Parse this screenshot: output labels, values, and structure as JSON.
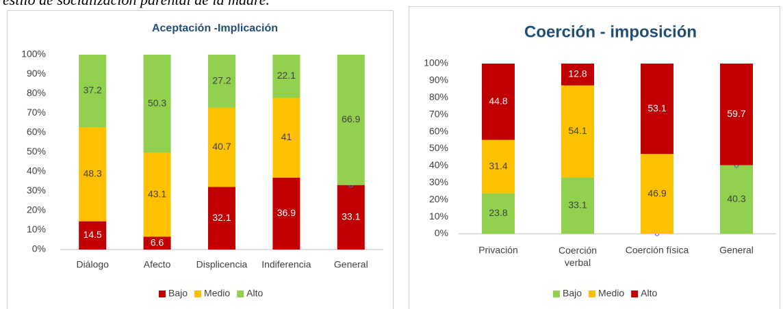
{
  "caption": "estilo de socialización parental de la madre.",
  "chart_data": [
    {
      "type": "bar",
      "stacked": true,
      "title": "Aceptación -Implicación",
      "categories": [
        "Diálogo",
        "Afecto",
        "Displicencia",
        "Indiferencia",
        "General"
      ],
      "series": [
        {
          "name": "Bajo",
          "color": "#c00000",
          "values": [
            14.5,
            6.6,
            32.1,
            36.9,
            33.1
          ]
        },
        {
          "name": "Medio",
          "color": "#ffc000",
          "values": [
            48.3,
            43.1,
            40.7,
            41,
            0
          ]
        },
        {
          "name": "Alto",
          "color": "#92d050",
          "values": [
            37.2,
            50.3,
            27.2,
            22.1,
            66.9
          ]
        }
      ],
      "ylim": [
        0,
        100
      ],
      "yticks": [
        {
          "value": 0,
          "label": "0%"
        },
        {
          "value": 10,
          "label": "10%"
        },
        {
          "value": 20,
          "label": "20%"
        },
        {
          "value": 30,
          "label": "30%"
        },
        {
          "value": 40,
          "label": "40%"
        },
        {
          "value": 50,
          "label": "50%"
        },
        {
          "value": 60,
          "label": "60%"
        },
        {
          "value": 70,
          "label": "70%"
        },
        {
          "value": 80,
          "label": "80%"
        },
        {
          "value": 90,
          "label": "90%"
        },
        {
          "value": 100,
          "label": "100%"
        }
      ],
      "legend": "bottom"
    },
    {
      "type": "bar",
      "stacked": true,
      "title": "Coerción - imposición",
      "categories": [
        "Privación",
        "Coerción verbal",
        "Coerción física",
        "General"
      ],
      "series": [
        {
          "name": "Bajo",
          "color": "#92d050",
          "values": [
            23.8,
            33.1,
            0,
            40.3
          ]
        },
        {
          "name": "Medio",
          "color": "#ffc000",
          "values": [
            31.4,
            54.1,
            46.9,
            0
          ]
        },
        {
          "name": "Alto",
          "color": "#c00000",
          "values": [
            44.8,
            12.8,
            53.1,
            59.7
          ]
        }
      ],
      "ylim": [
        0,
        100
      ],
      "yticks": [
        {
          "value": 0,
          "label": "0%"
        },
        {
          "value": 10,
          "label": "10%"
        },
        {
          "value": 20,
          "label": "20%"
        },
        {
          "value": 30,
          "label": "30%"
        },
        {
          "value": 40,
          "label": "40%"
        },
        {
          "value": 50,
          "label": "50%"
        },
        {
          "value": 60,
          "label": "60%"
        },
        {
          "value": 70,
          "label": "70%"
        },
        {
          "value": 80,
          "label": "80%"
        },
        {
          "value": 90,
          "label": "90%"
        },
        {
          "value": 100,
          "label": "100%"
        }
      ],
      "legend": "bottom"
    }
  ]
}
